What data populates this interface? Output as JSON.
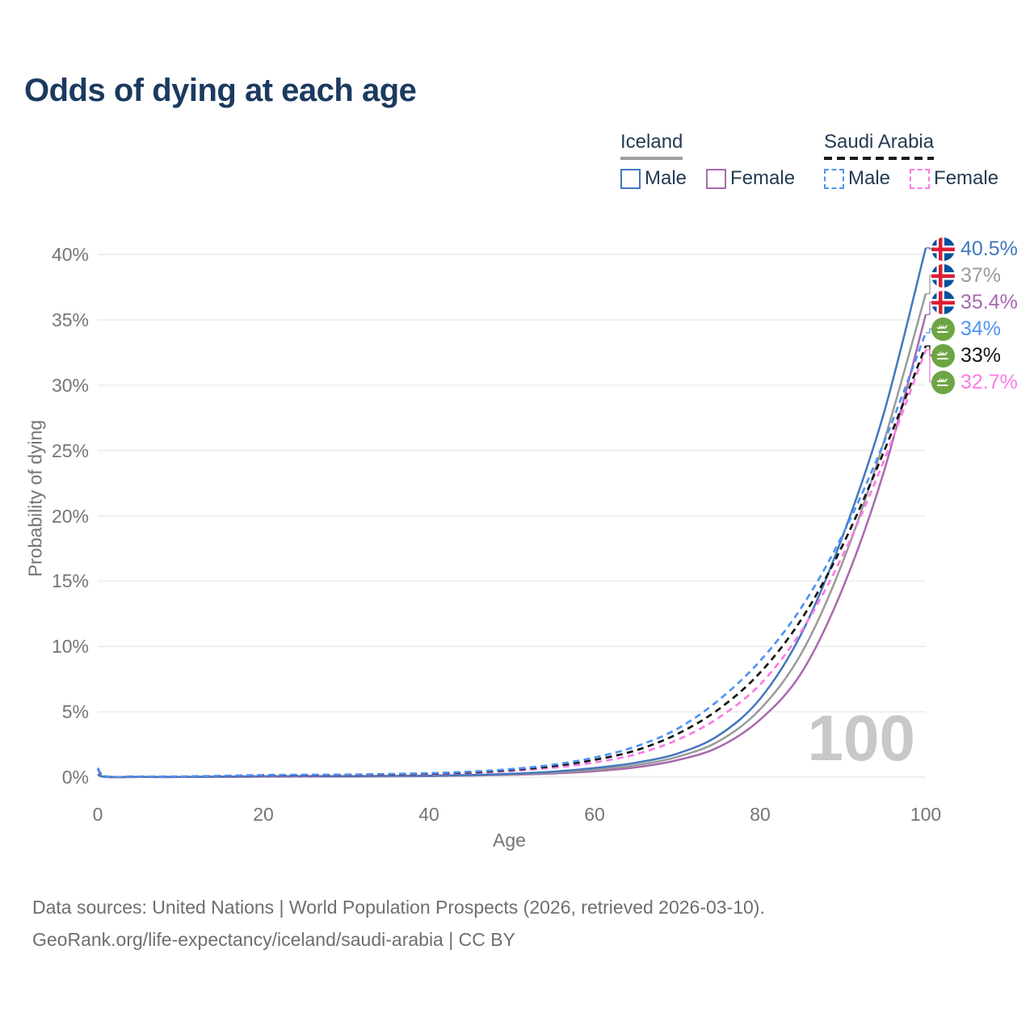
{
  "title": "Odds of dying at each age",
  "watermark_age": "100",
  "legend": {
    "groups": [
      {
        "country": "Iceland",
        "line_style": "solid",
        "underline_color": "#9E9E9E",
        "items": [
          {
            "label": "Male",
            "color": "#4277BD"
          },
          {
            "label": "Female",
            "color": "#A869AE"
          }
        ]
      },
      {
        "country": "Saudi Arabia",
        "line_style": "dashed",
        "underline_color": "#1A1A1A",
        "items": [
          {
            "label": "Male",
            "color": "#4E94F5"
          },
          {
            "label": "Female",
            "color": "#F97CE5"
          }
        ]
      }
    ]
  },
  "axes": {
    "x_label": "Age",
    "y_label": "Probability of dying",
    "x_ticks": [
      "0",
      "20",
      "40",
      "60",
      "80",
      "100"
    ],
    "y_ticks": [
      "0%",
      "5%",
      "10%",
      "15%",
      "20%",
      "25%",
      "30%",
      "35%",
      "40%"
    ]
  },
  "footer": {
    "line1": "Data sources: United Nations | World Population Prospects (2026, retrieved 2026-03-10).",
    "line2": "GeoRank.org/life-expectancy/iceland/saudi-arabia | CC BY"
  },
  "colors": {
    "title_text": "#1B3A5F",
    "legend_text": "#243B53",
    "axis_text": "#757575",
    "gridline": "#EBEBEB",
    "watermark": "#C8C8C8",
    "footer_text": "#6E6E6E",
    "iceland_flag_blue": "#02529C",
    "iceland_flag_red": "#DC1E35",
    "saudi_flag_green": "#6DA544"
  },
  "chart_data": {
    "type": "line",
    "title": "Odds of dying at each age",
    "xlabel": "Age",
    "ylabel": "Probability of dying",
    "xlim": [
      0,
      100
    ],
    "ylim_pct": [
      0,
      40
    ],
    "grid": "horizontal-only",
    "legend_position": "top-right",
    "x_ages": [
      0,
      1,
      5,
      10,
      15,
      20,
      25,
      30,
      35,
      40,
      45,
      50,
      55,
      60,
      65,
      70,
      75,
      80,
      85,
      90,
      95,
      100
    ],
    "series": [
      {
        "name": "Iceland Male",
        "country": "Iceland",
        "sex": "Male",
        "flag": "iceland",
        "color": "#4277BD",
        "dash": "solid",
        "end_label": "40.5%",
        "values_pct": [
          0.22,
          0.02,
          0.01,
          0.01,
          0.04,
          0.07,
          0.08,
          0.08,
          0.09,
          0.11,
          0.16,
          0.26,
          0.42,
          0.7,
          1.1,
          1.8,
          3.2,
          6.0,
          11.0,
          18.5,
          28.0,
          40.5
        ]
      },
      {
        "name": "Iceland Both sexes",
        "country": "Iceland",
        "sex": "Both",
        "flag": "iceland",
        "color": "#9A9A9A",
        "dash": "solid",
        "end_label": "37%",
        "values_pct": [
          0.2,
          0.02,
          0.01,
          0.01,
          0.03,
          0.05,
          0.06,
          0.06,
          0.07,
          0.1,
          0.14,
          0.22,
          0.35,
          0.57,
          0.92,
          1.55,
          2.75,
          5.2,
          9.5,
          16.5,
          25.8,
          37.0
        ]
      },
      {
        "name": "Iceland Female",
        "country": "Iceland",
        "sex": "Female",
        "flag": "iceland",
        "color": "#A869AE",
        "dash": "solid",
        "end_label": "35.4%",
        "values_pct": [
          0.18,
          0.01,
          0.01,
          0.01,
          0.02,
          0.03,
          0.04,
          0.04,
          0.06,
          0.08,
          0.12,
          0.18,
          0.28,
          0.45,
          0.75,
          1.3,
          2.3,
          4.4,
          8.0,
          14.5,
          23.5,
          35.4
        ]
      },
      {
        "name": "Saudi Arabia Male",
        "country": "Saudi Arabia",
        "sex": "Male",
        "flag": "saudi-arabia",
        "color": "#4E94F5",
        "dash": "dashed",
        "end_label": "34%",
        "values_pct": [
          0.7,
          0.06,
          0.04,
          0.05,
          0.1,
          0.16,
          0.18,
          0.2,
          0.24,
          0.3,
          0.42,
          0.62,
          0.95,
          1.5,
          2.35,
          3.7,
          5.9,
          8.9,
          13.0,
          18.6,
          25.7,
          34.0
        ]
      },
      {
        "name": "Saudi Arabia Both sexes",
        "country": "Saudi Arabia",
        "sex": "Both",
        "flag": "saudi-arabia",
        "color": "#151515",
        "dash": "dashed",
        "end_label": "33%",
        "values_pct": [
          0.65,
          0.05,
          0.04,
          0.04,
          0.08,
          0.13,
          0.15,
          0.17,
          0.2,
          0.26,
          0.36,
          0.55,
          0.84,
          1.32,
          2.05,
          3.3,
          5.2,
          8.0,
          12.1,
          17.8,
          25.0,
          33.0
        ]
      },
      {
        "name": "Saudi Arabia Female",
        "country": "Saudi Arabia",
        "sex": "Female",
        "flag": "saudi-arabia",
        "color": "#F97CE5",
        "dash": "dashed",
        "end_label": "32.7%",
        "values_pct": [
          0.6,
          0.05,
          0.03,
          0.04,
          0.07,
          0.1,
          0.12,
          0.14,
          0.17,
          0.22,
          0.31,
          0.47,
          0.72,
          1.12,
          1.75,
          2.85,
          4.55,
          7.1,
          11.2,
          17.0,
          24.3,
          32.7
        ]
      }
    ]
  }
}
